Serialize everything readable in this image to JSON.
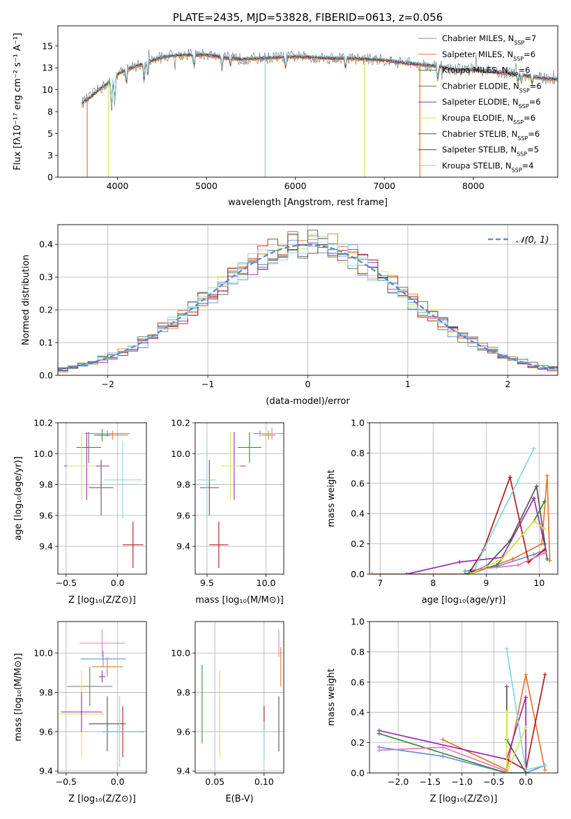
{
  "colors": {
    "Chabrier MILES": "#6b8fd6",
    "Salpeter MILES": "#e8762a",
    "Kroupa MILES": "#3a8a35",
    "Chabrier ELODIE": "#5a7d4a",
    "Salpeter ELODIE": "#9b2bb0",
    "Kroupa ELODIE": "#d9e34a",
    "Chabrier STELIB": "#555555",
    "Salpeter STELIB": "#b01818",
    "Kroupa STELIB": "#7fd9e0",
    "extra": "#e879c0"
  },
  "chart_data": [
    {
      "id": "spectrum",
      "type": "line",
      "title": "PLATE=2435, MJD=53828, FIBERID=0613, z=0.056",
      "xlabel": "wavelength [Angstrom, rest frame]",
      "ylabel": "Flux [fλ10⁻¹⁷ erg cm⁻² s⁻¹ A⁻¹]",
      "xlim": [
        3330,
        8950
      ],
      "ylim": [
        0,
        17.3
      ],
      "xticks": [
        4000,
        5000,
        6000,
        7000,
        8000
      ],
      "yticks": [
        0.0,
        2.5,
        5.0,
        7.5,
        10.0,
        12.5,
        15.0
      ],
      "legend_position": "top-right",
      "legend": [
        {
          "label": "Chabrier MILES, N",
          "sub": "SSP",
          "tail": "=7",
          "color": "#6b8fd6"
        },
        {
          "label": "Salpeter MILES, N",
          "sub": "SSP",
          "tail": "=6",
          "color": "#e8762a"
        },
        {
          "label": "Kroupa MILES, N",
          "sub": "SSP",
          "tail": "=6",
          "color": "#3a8a35"
        },
        {
          "label": "Chabrier ELODIE, N",
          "sub": "SSP",
          "tail": "=6",
          "color": "#5a7d4a"
        },
        {
          "label": "Salpeter ELODIE, N",
          "sub": "SSP",
          "tail": "=6",
          "color": "#9b2bb0"
        },
        {
          "label": "Kroupa ELODIE, N",
          "sub": "SSP",
          "tail": "=6",
          "color": "#d9e34a"
        },
        {
          "label": "Chabrier STELIB, N",
          "sub": "SSP",
          "tail": "=6",
          "color": "#555555"
        },
        {
          "label": "Salpeter STELIB, N",
          "sub": "SSP",
          "tail": "=5",
          "color": "#b01818"
        },
        {
          "label": "Kroupa STELIB, N",
          "sub": "SSP",
          "tail": "=4",
          "color": "#7fd9e0"
        }
      ],
      "continuum": [
        [
          3600,
          8.5
        ],
        [
          3700,
          9.2
        ],
        [
          3800,
          10.1
        ],
        [
          3900,
          10.8
        ],
        [
          4000,
          11.8
        ],
        [
          4100,
          12.3
        ],
        [
          4200,
          12.7
        ],
        [
          4300,
          13.0
        ],
        [
          4400,
          13.4
        ],
        [
          4500,
          13.7
        ],
        [
          4600,
          13.9
        ],
        [
          4800,
          14.0
        ],
        [
          5000,
          14.0
        ],
        [
          5200,
          13.7
        ],
        [
          5400,
          13.5
        ],
        [
          5600,
          13.6
        ],
        [
          5800,
          13.7
        ],
        [
          6000,
          13.8
        ],
        [
          6200,
          13.7
        ],
        [
          6400,
          13.6
        ],
        [
          6600,
          13.6
        ],
        [
          6800,
          13.5
        ],
        [
          7000,
          13.4
        ],
        [
          7200,
          13.1
        ],
        [
          7400,
          12.9
        ],
        [
          7600,
          12.7
        ],
        [
          7800,
          12.3
        ],
        [
          8000,
          12.3
        ],
        [
          8200,
          12.1
        ],
        [
          8400,
          11.9
        ],
        [
          8600,
          11.6
        ],
        [
          8800,
          11.3
        ],
        [
          8950,
          11.2
        ]
      ],
      "spikes": [
        [
          3660,
          0
        ],
        [
          3900,
          0
        ],
        [
          5660,
          0
        ],
        [
          6780,
          0
        ],
        [
          7400,
          0
        ]
      ]
    },
    {
      "id": "residuals",
      "type": "histogram",
      "xlabel": "(data-model)/error",
      "ylabel": "Normed distribution",
      "xlim": [
        -2.5,
        2.5
      ],
      "ylim": [
        0,
        0.46
      ],
      "xticks": [
        -2,
        -1,
        0,
        1,
        2
      ],
      "yticks": [
        0.0,
        0.1,
        0.2,
        0.3,
        0.4
      ],
      "legend_position": "top-right",
      "gaussian_label": "𝒩(0, 1)",
      "gaussian_color": "#5b8bd5",
      "bin_width": 0.1
    },
    {
      "id": "age-Z",
      "type": "scatter",
      "xlabel": "Z [log₁₀(Z/Z⊙)]",
      "ylabel": "age [log₁₀(age/yr)]",
      "xlim": [
        -0.58,
        0.28
      ],
      "ylim": [
        9.22,
        10.2
      ],
      "xticks": [
        -0.5,
        0.0
      ],
      "yticks": [
        9.4,
        9.6,
        9.8,
        10.0,
        10.2
      ],
      "errorbars": [
        {
          "c": "#6b8fd6",
          "x": -0.1,
          "xe": 0.22,
          "y": 10.13,
          "ye": 0.02
        },
        {
          "c": "#e8762a",
          "x": -0.05,
          "xe": 0.15,
          "y": 10.12,
          "ye": 0.03
        },
        {
          "c": "#3a8a35",
          "x": -0.15,
          "xe": 0.08,
          "y": 10.12,
          "ye": 0.04
        },
        {
          "c": "#5a7d4a",
          "x": -0.28,
          "xe": 0.12,
          "y": 10.04,
          "ye": 0.1
        },
        {
          "c": "#9b2bb0",
          "x": -0.3,
          "xe": 0.22,
          "y": 9.92,
          "ye": 0.22
        },
        {
          "c": "#d9e34a",
          "x": -0.35,
          "xe": 0.14,
          "y": 9.92,
          "ye": 0.22
        },
        {
          "c": "#555555",
          "x": -0.16,
          "xe": 0.12,
          "y": 9.78,
          "ye": 0.18
        },
        {
          "c": "#b01818",
          "x": 0.15,
          "xe": 0.1,
          "y": 9.41,
          "ye": 0.15
        },
        {
          "c": "#7fd9e0",
          "x": 0.05,
          "xe": 0.18,
          "y": 9.83,
          "ye": 0.25
        }
      ]
    },
    {
      "id": "age-mass",
      "type": "scatter",
      "xlabel": "mass [log₁₀(M/M⊙)]",
      "ylabel": "",
      "xlim": [
        9.4,
        10.15
      ],
      "ylim": [
        9.22,
        10.2
      ],
      "xticks": [
        9.5,
        10.0
      ],
      "yticks": [
        9.4,
        9.6,
        9.8,
        10.0,
        10.2
      ],
      "errorbars": [
        {
          "c": "#6b8fd6",
          "x": 9.95,
          "xe": 0.06,
          "y": 10.13,
          "ye": 0.02
        },
        {
          "c": "#e8762a",
          "x": 10.02,
          "xe": 0.06,
          "y": 10.12,
          "ye": 0.03
        },
        {
          "c": "#e879c0",
          "x": 10.05,
          "xe": 0.1,
          "y": 10.13,
          "ye": 0.04
        },
        {
          "c": "#3a8a35",
          "x": 9.86,
          "xe": 0.1,
          "y": 10.04,
          "ye": 0.1
        },
        {
          "c": "#9b2bb0",
          "x": 9.73,
          "xe": 0.1,
          "y": 9.92,
          "ye": 0.22
        },
        {
          "c": "#d9e34a",
          "x": 9.7,
          "xe": 0.08,
          "y": 9.92,
          "ye": 0.22
        },
        {
          "c": "#555555",
          "x": 9.52,
          "xe": 0.08,
          "y": 9.78,
          "ye": 0.18
        },
        {
          "c": "#b01818",
          "x": 9.6,
          "xe": 0.08,
          "y": 9.41,
          "ye": 0.15
        },
        {
          "c": "#7fd9e0",
          "x": 9.5,
          "xe": 0.08,
          "y": 9.83,
          "ye": 0.25
        }
      ]
    },
    {
      "id": "weight-age",
      "type": "line",
      "xlabel": "age  [log₁₀(age/yr)]",
      "ylabel": "mass weight",
      "xlim": [
        6.8,
        10.35
      ],
      "ylim": [
        0,
        1.0
      ],
      "xticks": [
        7,
        8,
        9,
        10
      ],
      "yticks": [
        0.0,
        0.2,
        0.4,
        0.6,
        0.8,
        1.0
      ],
      "series": [
        {
          "c": "#6b8fd6",
          "x": [
            8.6,
            9.2,
            9.9,
            10.1
          ],
          "y": [
            0.02,
            0.05,
            0.13,
            0.16
          ]
        },
        {
          "c": "#e8762a",
          "x": [
            6.85,
            8.7,
            9.5,
            10.05,
            10.15,
            10.2
          ],
          "y": [
            0.0,
            0.0,
            0.1,
            0.2,
            0.65,
            0.09
          ]
        },
        {
          "c": "#9b2bb0",
          "x": [
            7.5,
            8.5,
            9.3,
            9.9,
            10.1
          ],
          "y": [
            0.0,
            0.08,
            0.11,
            0.5,
            0.2
          ]
        },
        {
          "c": "#b01818",
          "x": [
            8.7,
            8.95,
            9.45,
            9.8,
            10.1
          ],
          "y": [
            0.02,
            0.16,
            0.64,
            0.08,
            0.16
          ]
        },
        {
          "c": "#555555",
          "x": [
            8.6,
            9.0,
            9.45,
            9.95,
            10.15
          ],
          "y": [
            0.0,
            0.05,
            0.22,
            0.58,
            0.1
          ]
        },
        {
          "c": "#7fd9e0",
          "x": [
            8.8,
            9.9
          ],
          "y": [
            0.05,
            0.83
          ]
        },
        {
          "c": "#3a8a35",
          "x": [
            8.6,
            9.2,
            9.9,
            10.1
          ],
          "y": [
            0.0,
            0.06,
            0.35,
            0.48
          ]
        },
        {
          "c": "#d9e34a",
          "x": [
            8.7,
            9.3,
            9.9,
            10.1
          ],
          "y": [
            0.0,
            0.1,
            0.35,
            0.3
          ]
        },
        {
          "c": "#e879c0",
          "x": [
            8.8,
            9.6,
            10.1
          ],
          "y": [
            0.03,
            0.06,
            0.14
          ]
        }
      ]
    },
    {
      "id": "mass-Z",
      "type": "scatter",
      "xlabel": "Z [log₁₀(Z/Z⊙)]",
      "ylabel": "mass [log₁₀(M/M⊙)]",
      "xlim": [
        -0.58,
        0.28
      ],
      "ylim": [
        9.39,
        10.16
      ],
      "xticks": [
        -0.5,
        0.0
      ],
      "yticks": [
        9.4,
        9.6,
        9.8,
        10.0
      ],
      "errorbars": [
        {
          "c": "#e879c0",
          "x": -0.15,
          "xe": 0.22,
          "y": 10.05,
          "ye": 0.07
        },
        {
          "c": "#6b8fd6",
          "x": -0.14,
          "xe": 0.22,
          "y": 9.97,
          "ye": 0.04
        },
        {
          "c": "#e8762a",
          "x": -0.1,
          "xe": 0.15,
          "y": 9.93,
          "ye": 0.05
        },
        {
          "c": "#9b2bb0",
          "x": -0.15,
          "xe": 0.03,
          "y": 9.88,
          "ye": 0.03
        },
        {
          "c": "#5a7d4a",
          "x": -0.27,
          "xe": 0.22,
          "y": 9.83,
          "ye": 0.1
        },
        {
          "c": "#d9e34a",
          "x": -0.35,
          "xe": 0.22,
          "y": 9.69,
          "ye": 0.22
        },
        {
          "c": "#9b2bb0",
          "x": -0.35,
          "xe": 0.2,
          "y": 9.7,
          "ye": 0.1
        },
        {
          "c": "#555555",
          "x": -0.1,
          "xe": 0.18,
          "y": 9.64,
          "ye": 0.14
        },
        {
          "c": "#b01818",
          "x": 0.05,
          "xe": 0.2,
          "y": 9.6,
          "ye": 0.13
        },
        {
          "c": "#7fd9e0",
          "x": 0.02,
          "xe": 0.22,
          "y": 9.6,
          "ye": 0.18
        }
      ]
    },
    {
      "id": "mass-EBV",
      "type": "scatter",
      "xlabel": "E(B-V)",
      "ylabel": "",
      "xlim": [
        0.03,
        0.12
      ],
      "ylim": [
        9.39,
        10.16
      ],
      "xticks": [
        0.05,
        0.1
      ],
      "yticks": [
        9.4,
        9.6,
        9.8,
        10.0
      ],
      "errorbars": [
        {
          "c": "#e879c0",
          "x": 0.115,
          "y": 10.05,
          "ye": 0.07
        },
        {
          "c": "#e8762a",
          "x": 0.117,
          "y": 9.93,
          "ye": 0.1
        },
        {
          "c": "#3a8a35",
          "x": 0.037,
          "y": 9.74,
          "ye": 0.2
        },
        {
          "c": "#d9e34a",
          "x": 0.055,
          "y": 9.69,
          "ye": 0.22
        },
        {
          "c": "#555555",
          "x": 0.115,
          "y": 9.64,
          "ye": 0.14
        },
        {
          "c": "#b01818",
          "x": 0.1,
          "y": 9.67,
          "ye": 0.06
        },
        {
          "c": "#7fd9e0",
          "x": 0.1,
          "y": 9.55,
          "ye": 0.1
        }
      ]
    },
    {
      "id": "weight-Z",
      "type": "line",
      "xlabel": "Z [log₁₀(Z/Z⊙)]",
      "ylabel": "mass weight",
      "xlim": [
        -2.45,
        0.5
      ],
      "ylim": [
        0,
        1.0
      ],
      "xticks": [
        -2.0,
        -1.5,
        -1.0,
        -0.5,
        0.0
      ],
      "yticks": [
        0.0,
        0.2,
        0.4,
        0.6,
        0.8,
        1.0
      ],
      "series": [
        {
          "c": "#6b8fd6",
          "x": [
            -2.3,
            -1.3,
            -0.3,
            0.0,
            0.3
          ],
          "y": [
            0.17,
            0.11,
            0.0,
            0.0,
            0.05
          ]
        },
        {
          "c": "#e8762a",
          "x": [
            -1.3,
            -0.3,
            0.0,
            0.3
          ],
          "y": [
            0.22,
            0.02,
            0.65,
            0.02
          ]
        },
        {
          "c": "#9b2bb0",
          "x": [
            -2.3,
            -0.3,
            0.0,
            0.0
          ],
          "y": [
            0.28,
            0.09,
            0.5,
            0.0
          ]
        },
        {
          "c": "#b01818",
          "x": [
            -0.3,
            0.0,
            0.3
          ],
          "y": [
            0.09,
            0.02,
            0.65
          ]
        },
        {
          "c": "#555555",
          "x": [
            -0.3,
            -0.3,
            0.0
          ],
          "y": [
            0.57,
            0.22,
            0.0
          ]
        },
        {
          "c": "#7fd9e0",
          "x": [
            -0.3,
            0.0,
            0.3
          ],
          "y": [
            0.82,
            0.02,
            0.05
          ]
        },
        {
          "c": "#3a8a35",
          "x": [
            -2.3,
            -0.3,
            0.0
          ],
          "y": [
            0.26,
            0.0,
            0.0
          ]
        },
        {
          "c": "#d9e34a",
          "x": [
            -0.3,
            -0.3,
            0.0
          ],
          "y": [
            0.4,
            0.0,
            0.3
          ]
        },
        {
          "c": "#e879c0",
          "x": [
            -2.3,
            -1.3,
            -0.3
          ],
          "y": [
            0.15,
            0.17,
            0.01
          ]
        }
      ]
    }
  ]
}
